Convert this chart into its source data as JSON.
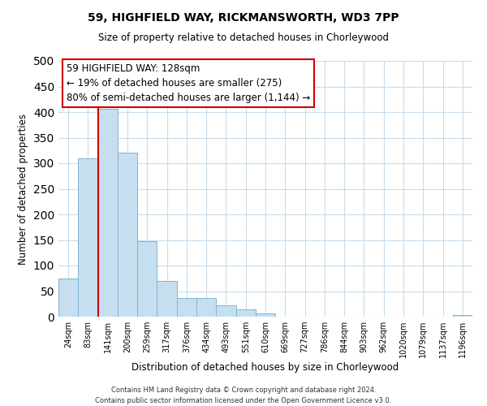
{
  "title": "59, HIGHFIELD WAY, RICKMANSWORTH, WD3 7PP",
  "subtitle": "Size of property relative to detached houses in Chorleywood",
  "xlabel": "Distribution of detached houses by size in Chorleywood",
  "ylabel": "Number of detached properties",
  "bin_labels": [
    "24sqm",
    "83sqm",
    "141sqm",
    "200sqm",
    "259sqm",
    "317sqm",
    "376sqm",
    "434sqm",
    "493sqm",
    "551sqm",
    "610sqm",
    "669sqm",
    "727sqm",
    "786sqm",
    "844sqm",
    "903sqm",
    "962sqm",
    "1020sqm",
    "1079sqm",
    "1137sqm",
    "1196sqm"
  ],
  "bar_heights": [
    75,
    310,
    407,
    320,
    148,
    70,
    37,
    37,
    22,
    14,
    6,
    0,
    0,
    0,
    0,
    0,
    0,
    0,
    0,
    0,
    3
  ],
  "bar_color": "#c6dff0",
  "bar_edge_color": "#7fb4d5",
  "vline_color": "#cc0000",
  "ylim": [
    0,
    500
  ],
  "yticks": [
    0,
    50,
    100,
    150,
    200,
    250,
    300,
    350,
    400,
    450,
    500
  ],
  "annotation_line1": "59 HIGHFIELD WAY: 128sqm",
  "annotation_line2": "← 19% of detached houses are smaller (275)",
  "annotation_line3": "80% of semi-detached houses are larger (1,144) →",
  "annotation_box_color": "#ffffff",
  "annotation_border_color": "#cc0000",
  "footer_line1": "Contains HM Land Registry data © Crown copyright and database right 2024.",
  "footer_line2": "Contains public sector information licensed under the Open Government Licence v3.0.",
  "background_color": "#ffffff",
  "grid_color": "#c8dcea"
}
